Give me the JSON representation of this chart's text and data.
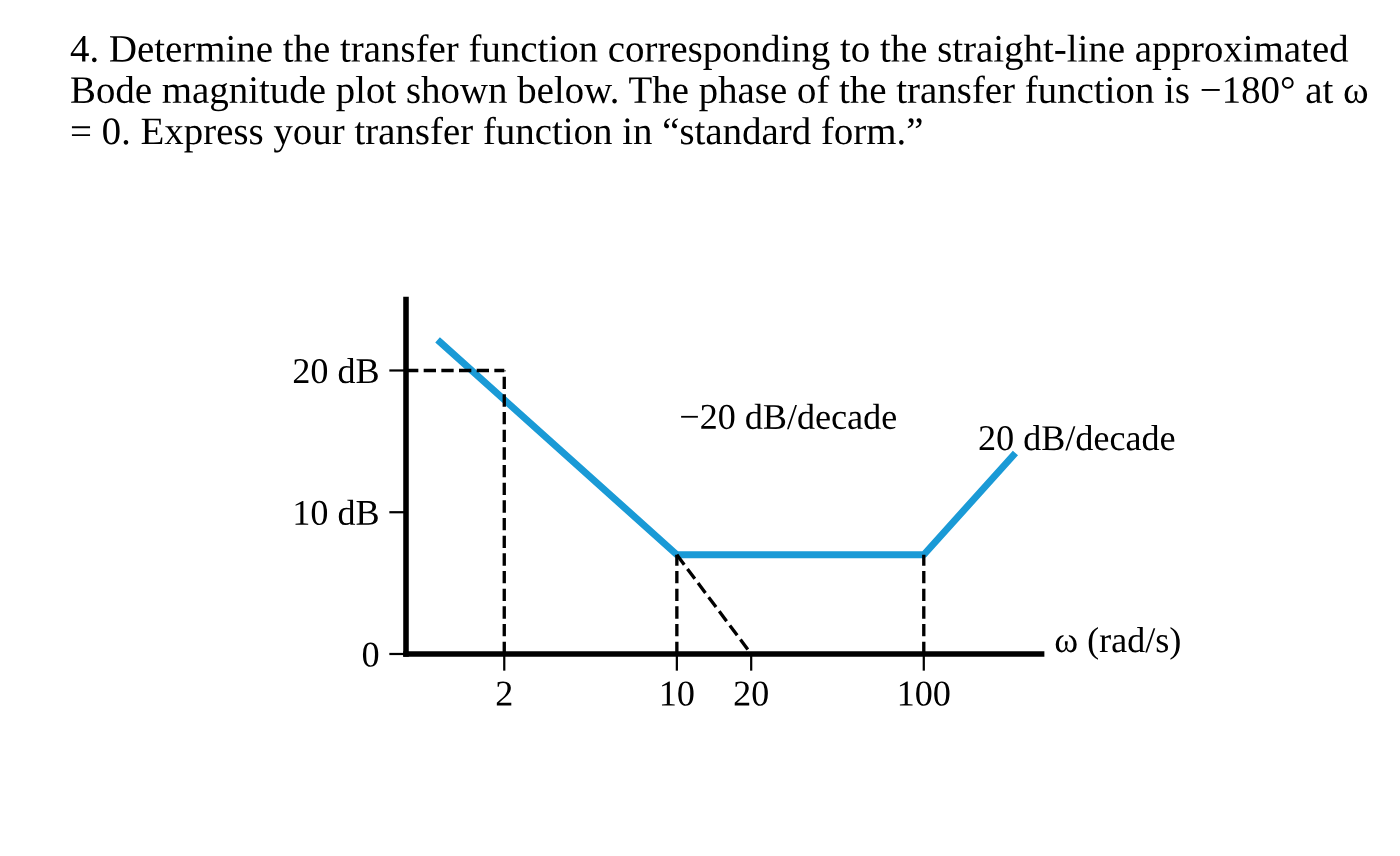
{
  "chart_data": {
    "type": "line",
    "title": "4. Determine the transfer function corresponding to the straight-line approximated Bode magnitude plot shown below. The phase of the transfer function is −180° at ω = 0. Express your transfer function in “standard form.”",
    "xlabel": "ω (rad/s)",
    "log": "x",
    "xlim": [
      0.8,
      300
    ],
    "ylim": [
      0,
      25
    ],
    "xticks": [
      2,
      10,
      20,
      100
    ],
    "yticks": [
      {
        "value": 0,
        "label": "0"
      },
      {
        "value": 10,
        "label": "10 dB"
      },
      {
        "value": 20,
        "label": "20 dB"
      }
    ],
    "grid": false,
    "legend": false,
    "marker": "none",
    "series": [
      {
        "color": "#1a9ad6",
        "line_style": "solid",
        "x": [
          1.1,
          10,
          100,
          230
        ],
        "values": [
          22,
          7,
          7,
          14
        ]
      },
      {
        "color": "#000000",
        "line_style": "dashed",
        "x": [
          0.8,
          2
        ],
        "values": [
          20,
          20
        ]
      },
      {
        "color": "#000000",
        "line_style": "dashed",
        "x": [
          2,
          2
        ],
        "values": [
          0,
          20
        ]
      },
      {
        "color": "#000000",
        "line_style": "dashed",
        "x": [
          10,
          10
        ],
        "values": [
          0,
          7
        ]
      },
      {
        "color": "#000000",
        "line_style": "dashed",
        "x": [
          10,
          20
        ],
        "values": [
          7,
          0
        ]
      },
      {
        "color": "#000000",
        "line_style": "dashed",
        "x": [
          100,
          100
        ],
        "values": [
          0,
          7
        ]
      }
    ],
    "annotations": [
      "−20 dB/decade",
      "20 dB/decade"
    ]
  }
}
